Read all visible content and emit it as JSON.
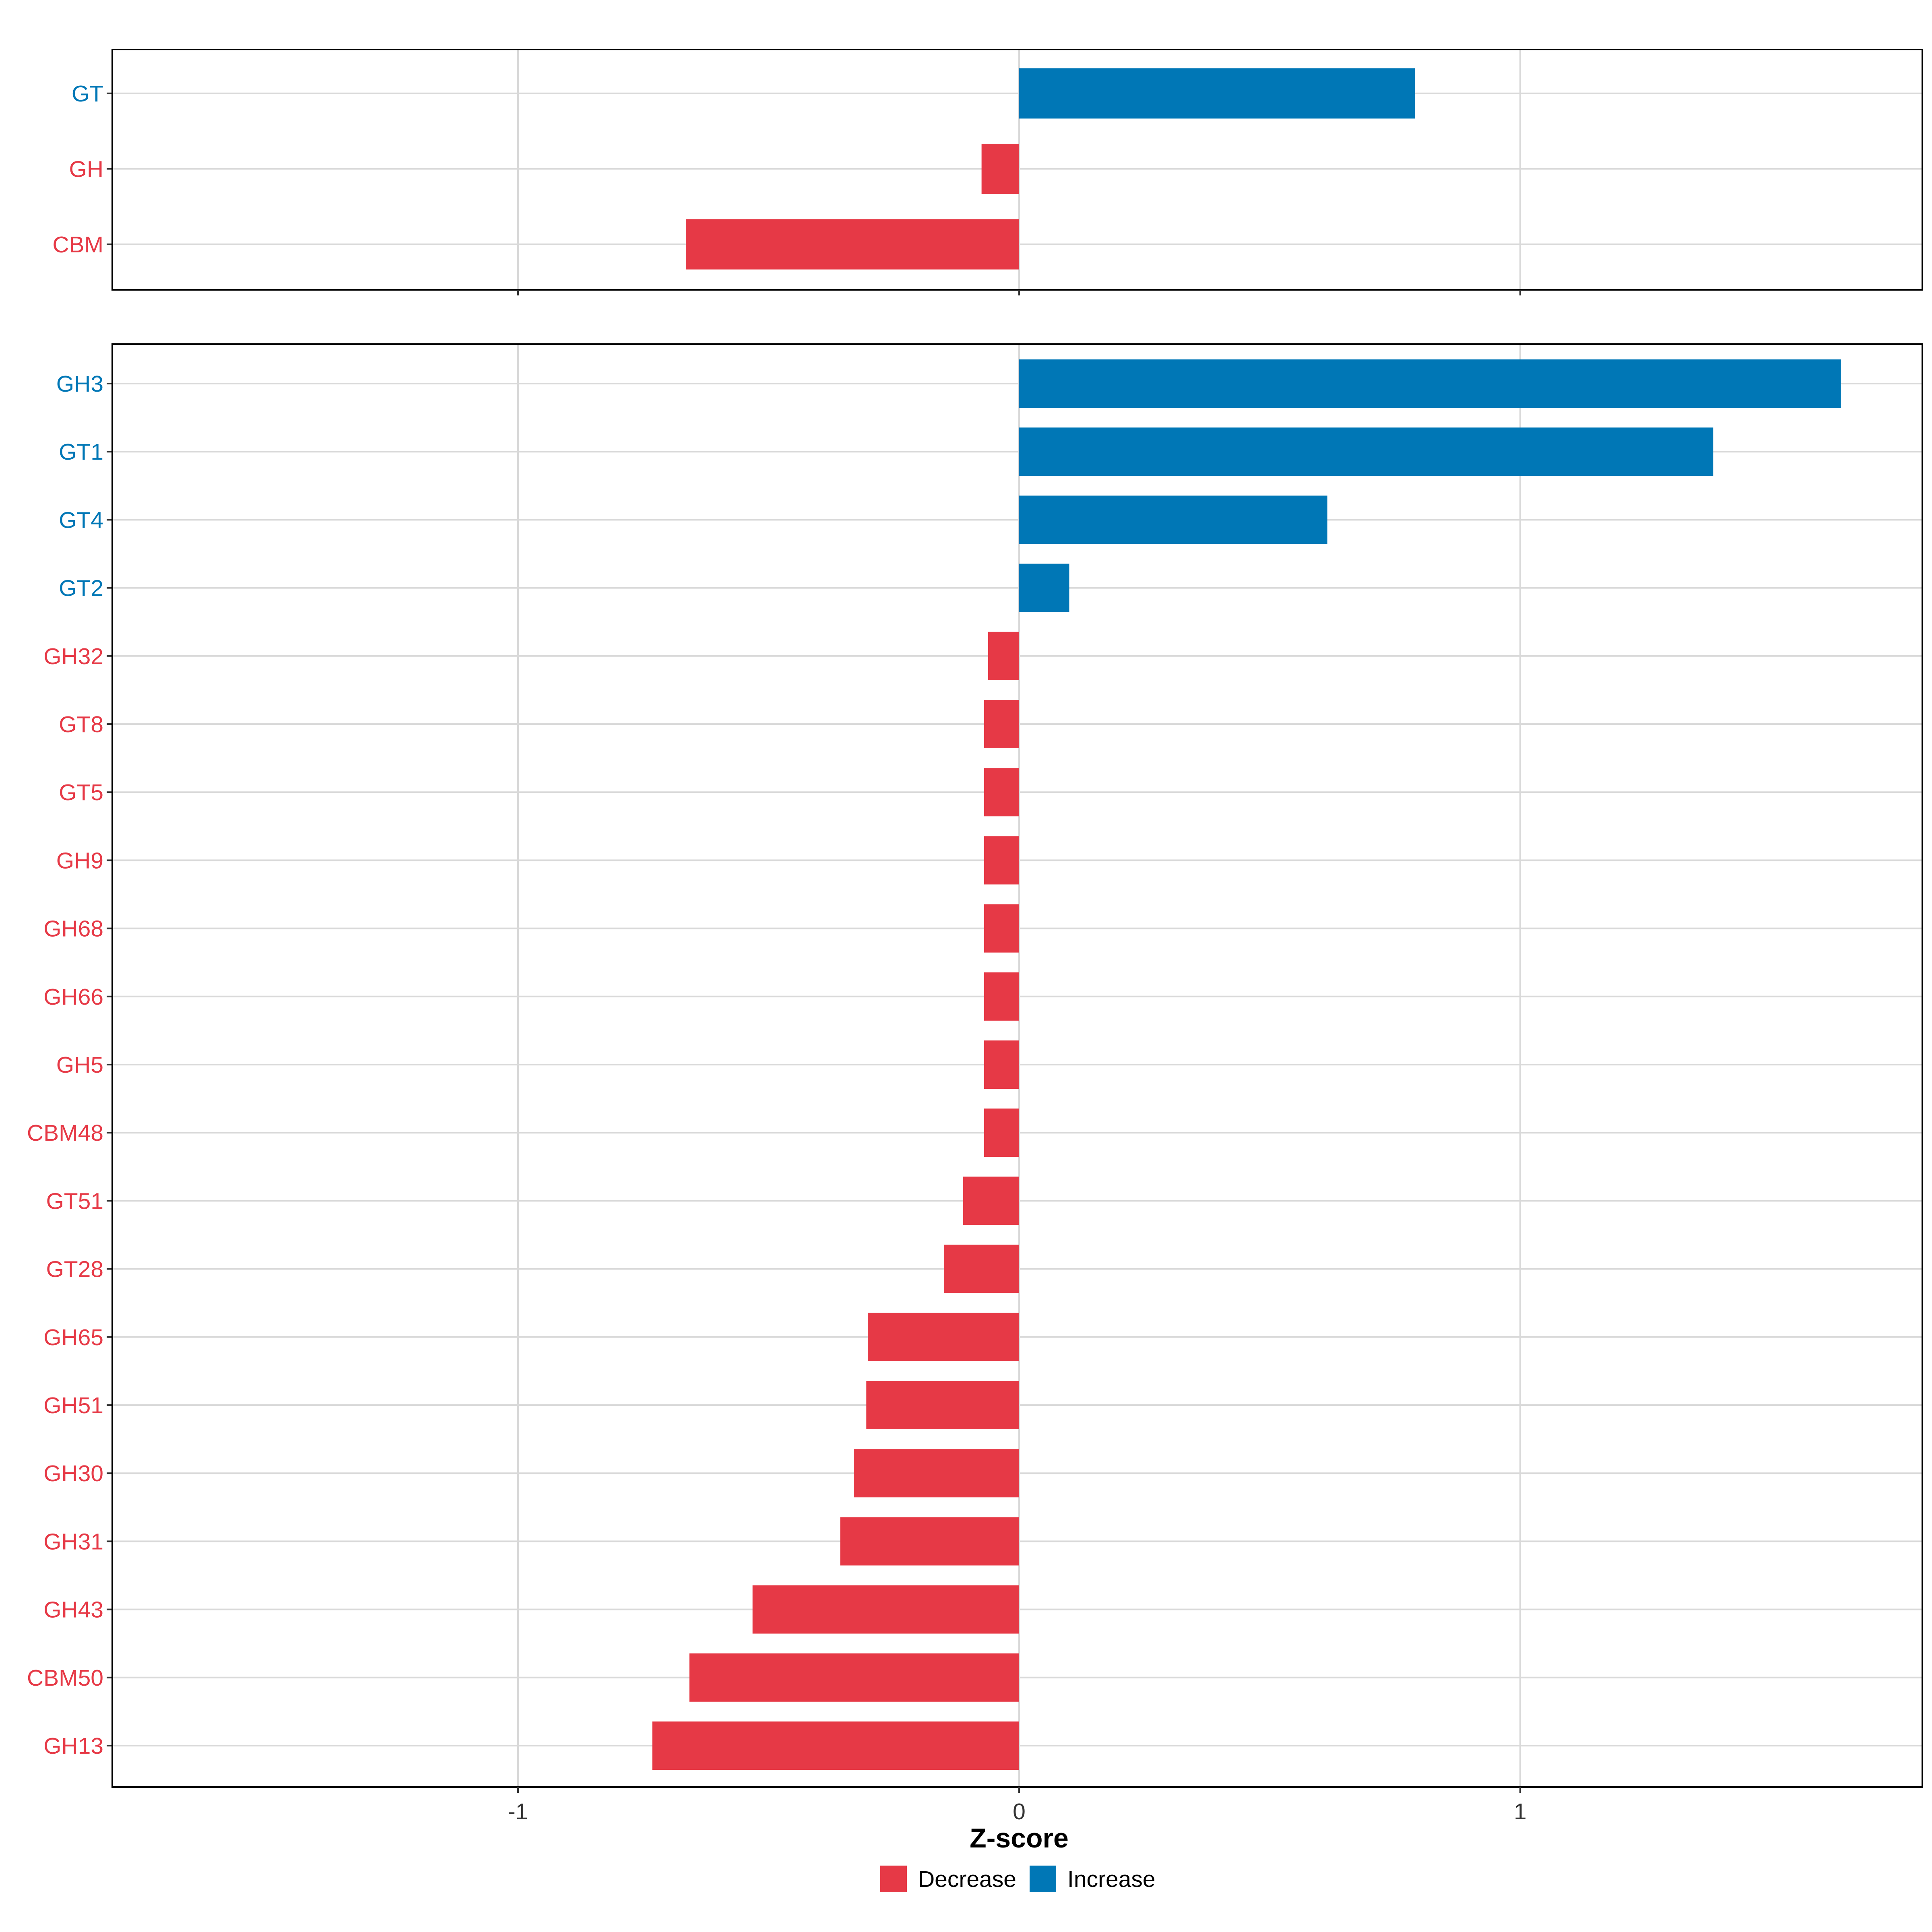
{
  "colors": {
    "decrease": "#E63946",
    "increase": "#0077B6",
    "grid": "#D9D9D9",
    "axis_text": "#333333"
  },
  "chart_data": {
    "type": "bar",
    "orientation": "horizontal",
    "xlabel": "Z-score",
    "xlim": [
      -1.8,
      1.8
    ],
    "x_ticks": [
      -1,
      0,
      1
    ],
    "x_tick_labels": [
      "-1",
      "0",
      "1"
    ],
    "grid": true,
    "legend": {
      "position": "bottom",
      "entries": [
        {
          "label": "Decrease",
          "key": "decrease"
        },
        {
          "label": "Increase",
          "key": "increase"
        }
      ]
    },
    "panels": [
      {
        "name": "top",
        "categories": [
          "GT",
          "GH",
          "CBM"
        ],
        "values": [
          0.79,
          -0.075,
          -0.665
        ],
        "direction": [
          "increase",
          "decrease",
          "decrease"
        ]
      },
      {
        "name": "bottom",
        "categories": [
          "GH3",
          "GT1",
          "GT4",
          "GT2",
          "GH32",
          "GT8",
          "GT5",
          "GH9",
          "GH68",
          "GH66",
          "GH5",
          "CBM48",
          "GT51",
          "GT28",
          "GH65",
          "GH51",
          "GH30",
          "GH31",
          "GH43",
          "CBM50",
          "GH13"
        ],
        "values": [
          1.64,
          1.385,
          0.615,
          0.1,
          -0.062,
          -0.07,
          -0.07,
          -0.07,
          -0.07,
          -0.07,
          -0.07,
          -0.07,
          -0.112,
          -0.15,
          -0.302,
          -0.305,
          -0.33,
          -0.357,
          -0.532,
          -0.658,
          -0.732
        ],
        "direction": [
          "increase",
          "increase",
          "increase",
          "increase",
          "decrease",
          "decrease",
          "decrease",
          "decrease",
          "decrease",
          "decrease",
          "decrease",
          "decrease",
          "decrease",
          "decrease",
          "decrease",
          "decrease",
          "decrease",
          "decrease",
          "decrease",
          "decrease",
          "decrease"
        ]
      }
    ]
  }
}
